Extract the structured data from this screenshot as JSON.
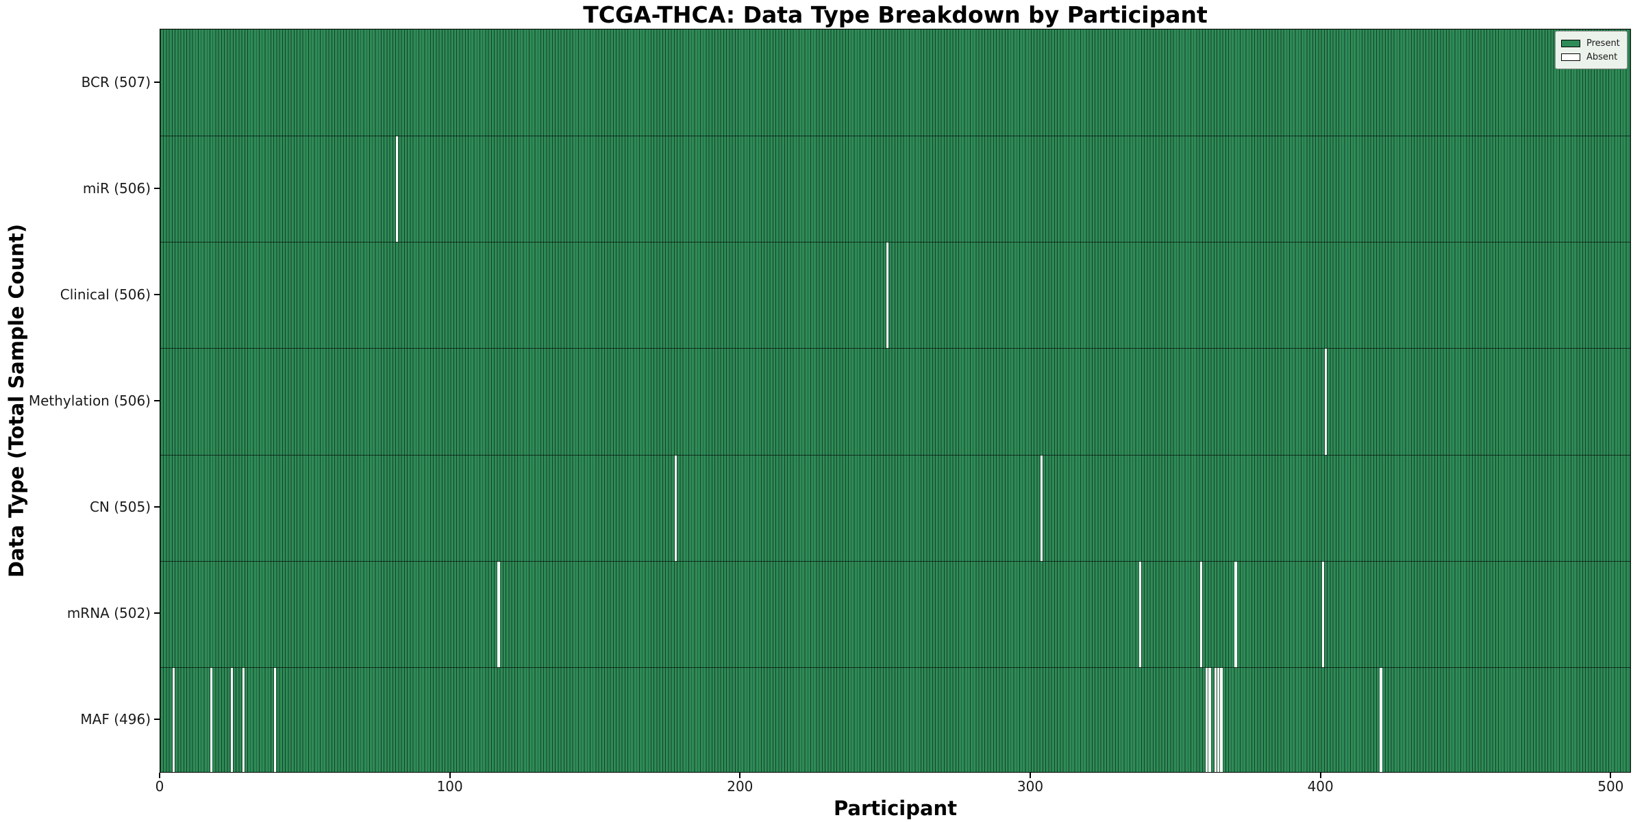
{
  "title": "TCGA-THCA: Data Type Breakdown by Participant",
  "legend": {
    "present_label": "Present",
    "absent_label": "Absent"
  },
  "colors": {
    "present": "#2e8b57",
    "absent": "#ffffff",
    "cell_edge": "rgba(0,0,0,0.55)",
    "row_border": "rgba(0,0,0,0.65)",
    "legend_bg": "#ebf1eb",
    "axis": "#000000"
  },
  "chart_data": {
    "type": "heatmap",
    "title": "TCGA-THCA: Data Type Breakdown by Participant",
    "xlabel": "Participant",
    "ylabel": "Data Type (Total Sample Count)",
    "x_ticks": [
      0,
      100,
      200,
      300,
      400,
      500
    ],
    "xlim": [
      0,
      507
    ],
    "n_participants": 507,
    "grid": false,
    "legend_position": "upper right",
    "legend_entries": [
      {
        "label": "Present",
        "color": "#2e8b57"
      },
      {
        "label": "Absent",
        "color": "#ffffff"
      }
    ],
    "rows": [
      {
        "label": "BCR (507)",
        "data_type": "BCR",
        "total_samples": 507,
        "absent_participants": []
      },
      {
        "label": "miR (506)",
        "data_type": "miR",
        "total_samples": 506,
        "absent_participants": [
          82
        ]
      },
      {
        "label": "Clinical (506)",
        "data_type": "Clinical",
        "total_samples": 506,
        "absent_participants": [
          251
        ]
      },
      {
        "label": "Methylation (506)",
        "data_type": "Methylation",
        "total_samples": 506,
        "absent_participants": [
          402
        ]
      },
      {
        "label": "CN (505)",
        "data_type": "CN",
        "total_samples": 505,
        "absent_participants": [
          178,
          304
        ]
      },
      {
        "label": "mRNA (502)",
        "data_type": "mRNA",
        "total_samples": 502,
        "absent_participants": [
          117,
          338,
          359,
          371,
          401
        ]
      },
      {
        "label": "MAF (496)",
        "data_type": "MAF",
        "total_samples": 496,
        "absent_participants": [
          5,
          18,
          25,
          29,
          40,
          361,
          362,
          364,
          365,
          366,
          421
        ]
      }
    ]
  }
}
